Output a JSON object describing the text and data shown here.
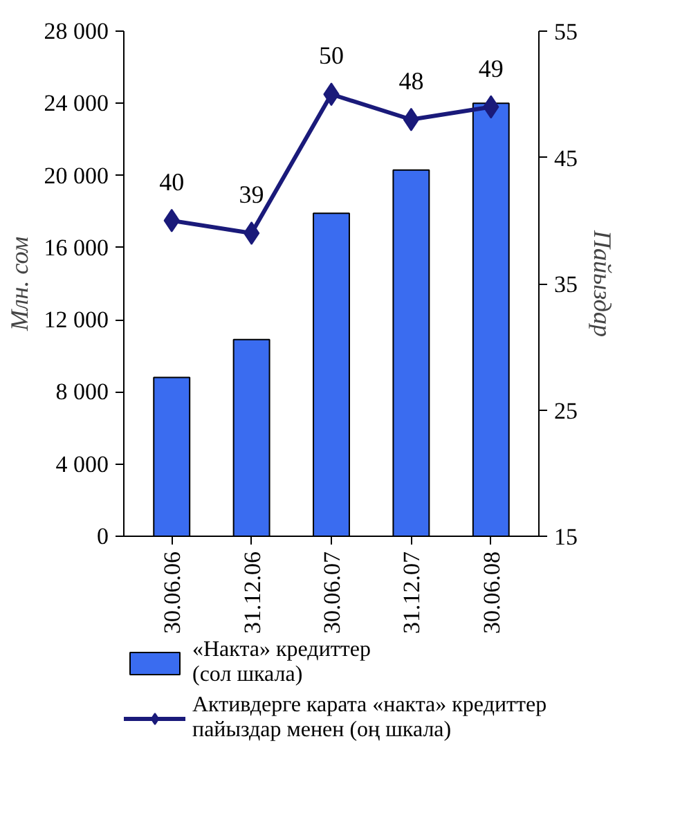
{
  "chart_data": {
    "type": "bar",
    "categories": [
      "30.06.06",
      "31.12.06",
      "30.06.07",
      "31.12.07",
      "30.06.08"
    ],
    "ylabel": "Млн. сом",
    "y2label": "Пайыздар",
    "ylim": [
      0,
      28000
    ],
    "yticks": [
      0,
      {
        "value": 4000,
        "label": "4 000"
      },
      {
        "value": 8000,
        "label": "8 000"
      },
      {
        "value": 12000,
        "label": "12 000"
      },
      {
        "value": 16000,
        "label": "16 000"
      },
      {
        "value": 20000,
        "label": "20 000"
      },
      {
        "value": 24000,
        "label": "24 000"
      },
      {
        "value": 28000,
        "label": "28 000"
      }
    ],
    "y2lim": [
      15,
      55
    ],
    "y2ticks": [
      15,
      25,
      35,
      45,
      55
    ],
    "grid": false,
    "legend": "bottom",
    "series": [
      {
        "name": "«Накта» кредиттер\n(сол шкала)",
        "color": "#3a6cf0",
        "values": [
          8800,
          10900,
          17900,
          20300,
          24000
        ]
      },
      {
        "name": "Активдерге карата «накта» кредиттер\nпайыздар менен (оң шкала)",
        "type": "line",
        "axis": "y2",
        "color": "#1a1a7a",
        "marker": "diamond",
        "line_style": "solid",
        "data_labels": true,
        "values": [
          40,
          39,
          50,
          48,
          49
        ]
      }
    ]
  }
}
